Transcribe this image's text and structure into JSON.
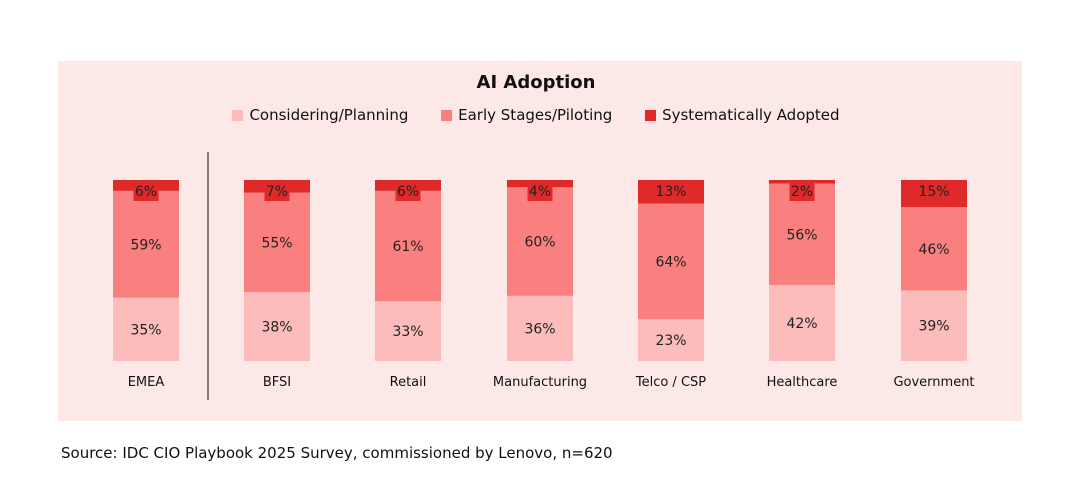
{
  "chart_data": {
    "type": "bar",
    "stacked": true,
    "title": "AI Adoption",
    "categories": [
      "EMEA",
      "BFSI",
      "Retail",
      "Manufacturing",
      "Telco / CSP",
      "Healthcare",
      "Government"
    ],
    "series": [
      {
        "name": "Considering/Planning",
        "values": [
          35,
          38,
          33,
          36,
          23,
          42,
          39
        ],
        "color": "#fcbcbc"
      },
      {
        "name": "Early Stages/Piloting",
        "values": [
          59,
          55,
          61,
          60,
          64,
          56,
          46
        ],
        "color": "#fa8080"
      },
      {
        "name": "Systematically Adopted",
        "values": [
          6,
          7,
          6,
          4,
          13,
          2,
          15
        ],
        "color": "#e02a2a"
      }
    ],
    "labels": [
      [
        "35%",
        "38%",
        "33%",
        "36%",
        "23%",
        "42%",
        "39%"
      ],
      [
        "59%",
        "55%",
        "61%",
        "60%",
        "64%",
        "56%",
        "46%"
      ],
      [
        "6%",
        "7%",
        "6%",
        "4%",
        "13%",
        "2%",
        "15%"
      ]
    ],
    "ylim": [
      0,
      100
    ],
    "legend_position": "top",
    "grid": false
  },
  "source": "Source: IDC CIO Playbook 2025 Survey, commissioned by Lenovo, n=620"
}
